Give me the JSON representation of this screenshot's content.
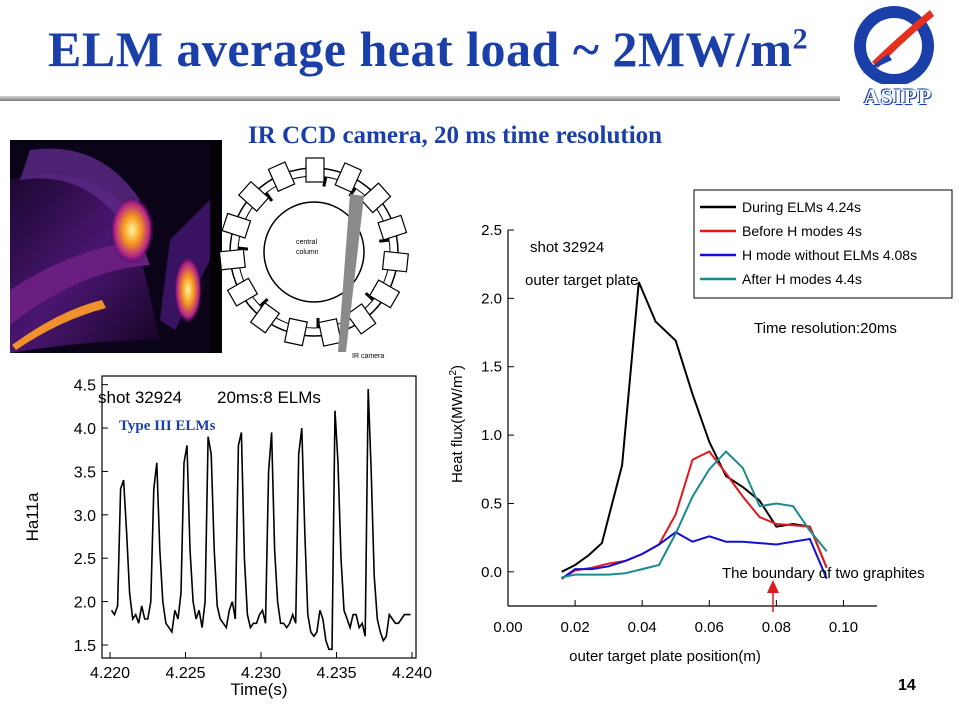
{
  "slide": {
    "title_main": "ELM average heat load ~ 2MW/m",
    "title_sup": "2",
    "subtitle": "IR CCD camera, 20 ms time resolution",
    "logo_text": "ASIPP",
    "page_number": "14",
    "diagram": {
      "center_label_1": "central",
      "center_label_2": "column",
      "camera_label": "IR camera"
    }
  },
  "chart_data": [
    {
      "type": "line",
      "xlabel": "Time(s)",
      "ylabel": "Ha11a",
      "xlim": [
        4.22,
        4.24
      ],
      "ylim": [
        1.5,
        4.5
      ],
      "xticks": [
        "4.220",
        "4.225",
        "4.230",
        "4.235",
        "4.240"
      ],
      "yticks": [
        "1.5",
        "2.0",
        "2.5",
        "3.0",
        "3.5",
        "4.0",
        "4.5"
      ],
      "annotations": [
        "shot 32924",
        "20ms:8 ELMs",
        "Type III ELMs"
      ],
      "series": [
        {
          "color": "#000000",
          "x": [
            4.2201,
            4.2203,
            4.2205,
            4.2207,
            4.2209,
            4.2211,
            4.2213,
            4.2215,
            4.2217,
            4.2219,
            4.2221,
            4.2223,
            4.2225,
            4.2227,
            4.2229,
            4.2231,
            4.2233,
            4.2235,
            4.2237,
            4.2239,
            4.2241,
            4.2243,
            4.2245,
            4.2247,
            4.2249,
            4.2251,
            4.2253,
            4.2255,
            4.2257,
            4.2259,
            4.2261,
            4.2263,
            4.2265,
            4.2267,
            4.2269,
            4.2271,
            4.2273,
            4.2275,
            4.2277,
            4.2279,
            4.2281,
            4.2283,
            4.2285,
            4.2287,
            4.2289,
            4.2291,
            4.2293,
            4.2295,
            4.2297,
            4.2299,
            4.2301,
            4.2303,
            4.2305,
            4.2307,
            4.2309,
            4.2311,
            4.2313,
            4.2315,
            4.2317,
            4.2319,
            4.2321,
            4.2323,
            4.2325,
            4.2327,
            4.2329,
            4.2331,
            4.2333,
            4.2335,
            4.2337,
            4.2339,
            4.2341,
            4.2343,
            4.2345,
            4.2347,
            4.2349,
            4.2351,
            4.2353,
            4.2355,
            4.2357,
            4.2359,
            4.2361,
            4.2363,
            4.2365,
            4.2367,
            4.2369,
            4.2371,
            4.2373,
            4.2375,
            4.2377,
            4.2379,
            4.2381,
            4.2383,
            4.2385,
            4.2387,
            4.2389,
            4.2391,
            4.2393,
            4.2395,
            4.2397,
            4.2399
          ],
          "y": [
            1.9,
            1.85,
            1.95,
            3.3,
            3.4,
            2.8,
            2.1,
            1.8,
            1.85,
            1.75,
            1.95,
            1.8,
            1.8,
            2.0,
            3.3,
            3.6,
            2.6,
            2.0,
            1.75,
            1.7,
            1.65,
            1.9,
            1.8,
            2.1,
            3.6,
            3.8,
            2.6,
            2.0,
            1.8,
            1.9,
            1.7,
            2.0,
            3.9,
            3.7,
            2.6,
            1.95,
            1.8,
            1.75,
            1.7,
            1.9,
            2.0,
            1.8,
            3.8,
            3.95,
            2.5,
            1.85,
            1.7,
            1.75,
            1.75,
            1.85,
            1.9,
            1.75,
            3.5,
            3.95,
            2.6,
            2.0,
            1.75,
            1.75,
            1.7,
            1.75,
            1.85,
            1.75,
            3.7,
            4.0,
            2.8,
            1.85,
            1.65,
            1.6,
            1.65,
            1.9,
            1.8,
            1.55,
            1.45,
            1.45,
            4.2,
            3.6,
            2.5,
            1.9,
            1.8,
            1.7,
            1.85,
            1.85,
            1.7,
            1.75,
            1.6,
            4.45,
            3.5,
            2.3,
            1.8,
            1.65,
            1.55,
            1.6,
            1.85,
            1.8,
            1.75,
            1.75,
            1.8,
            1.85,
            1.85,
            1.85
          ]
        }
      ]
    },
    {
      "type": "line",
      "xlabel": "outer target plate position(m)",
      "ylabel": "Heat flux(MW/m",
      "ylabel_sup": "2",
      "ylabel_close": ")",
      "xlim": [
        0.0,
        0.11
      ],
      "ylim": [
        -0.25,
        2.5
      ],
      "xticks": [
        "0.00",
        "0.02",
        "0.04",
        "0.06",
        "0.08",
        "0.10"
      ],
      "yticks": [
        "0.0",
        "0.5",
        "1.0",
        "1.5",
        "2.0",
        "2.5"
      ],
      "annotations": [
        "shot 32924",
        "outer target plate",
        "Time resolution:20ms",
        "The boundary of two graphites"
      ],
      "legend_position": "top-right",
      "series": [
        {
          "name": "During ELMs   4.24s",
          "color": "#000000",
          "x": [
            0.016,
            0.02,
            0.024,
            0.028,
            0.034,
            0.039,
            0.044,
            0.05,
            0.055,
            0.06,
            0.065,
            0.07,
            0.075,
            0.08,
            0.085,
            0.09,
            0.095
          ],
          "y": [
            0.0,
            0.05,
            0.12,
            0.21,
            0.78,
            2.12,
            1.83,
            1.69,
            1.3,
            0.95,
            0.7,
            0.62,
            0.52,
            0.33,
            0.35,
            0.33,
            0.03
          ]
        },
        {
          "name": "Before H modes  4s",
          "color": "#e0191e",
          "x": [
            0.016,
            0.02,
            0.025,
            0.03,
            0.035,
            0.04,
            0.045,
            0.05,
            0.055,
            0.06,
            0.065,
            0.07,
            0.075,
            0.08,
            0.085,
            0.09,
            0.095
          ],
          "y": [
            -0.05,
            0.01,
            0.03,
            0.06,
            0.08,
            0.13,
            0.2,
            0.42,
            0.82,
            0.88,
            0.72,
            0.55,
            0.4,
            0.35,
            0.34,
            0.33,
            0.03
          ]
        },
        {
          "name": "H mode without ELMs 4.08s",
          "color": "#1010d8",
          "x": [
            0.016,
            0.02,
            0.025,
            0.03,
            0.035,
            0.04,
            0.045,
            0.05,
            0.055,
            0.06,
            0.065,
            0.07,
            0.075,
            0.08,
            0.085,
            0.09,
            0.095
          ],
          "y": [
            -0.05,
            0.02,
            0.02,
            0.04,
            0.08,
            0.13,
            0.2,
            0.29,
            0.22,
            0.26,
            0.22,
            0.22,
            0.21,
            0.2,
            0.22,
            0.24,
            -0.05
          ]
        },
        {
          "name": "After H modes   4.4s",
          "color": "#1a8a8a",
          "x": [
            0.016,
            0.02,
            0.025,
            0.03,
            0.035,
            0.04,
            0.045,
            0.05,
            0.055,
            0.06,
            0.065,
            0.07,
            0.075,
            0.08,
            0.085,
            0.09,
            0.095
          ],
          "y": [
            -0.04,
            -0.02,
            -0.02,
            -0.02,
            -0.01,
            0.02,
            0.05,
            0.28,
            0.55,
            0.75,
            0.88,
            0.76,
            0.48,
            0.5,
            0.48,
            0.3,
            0.15
          ]
        }
      ]
    }
  ]
}
